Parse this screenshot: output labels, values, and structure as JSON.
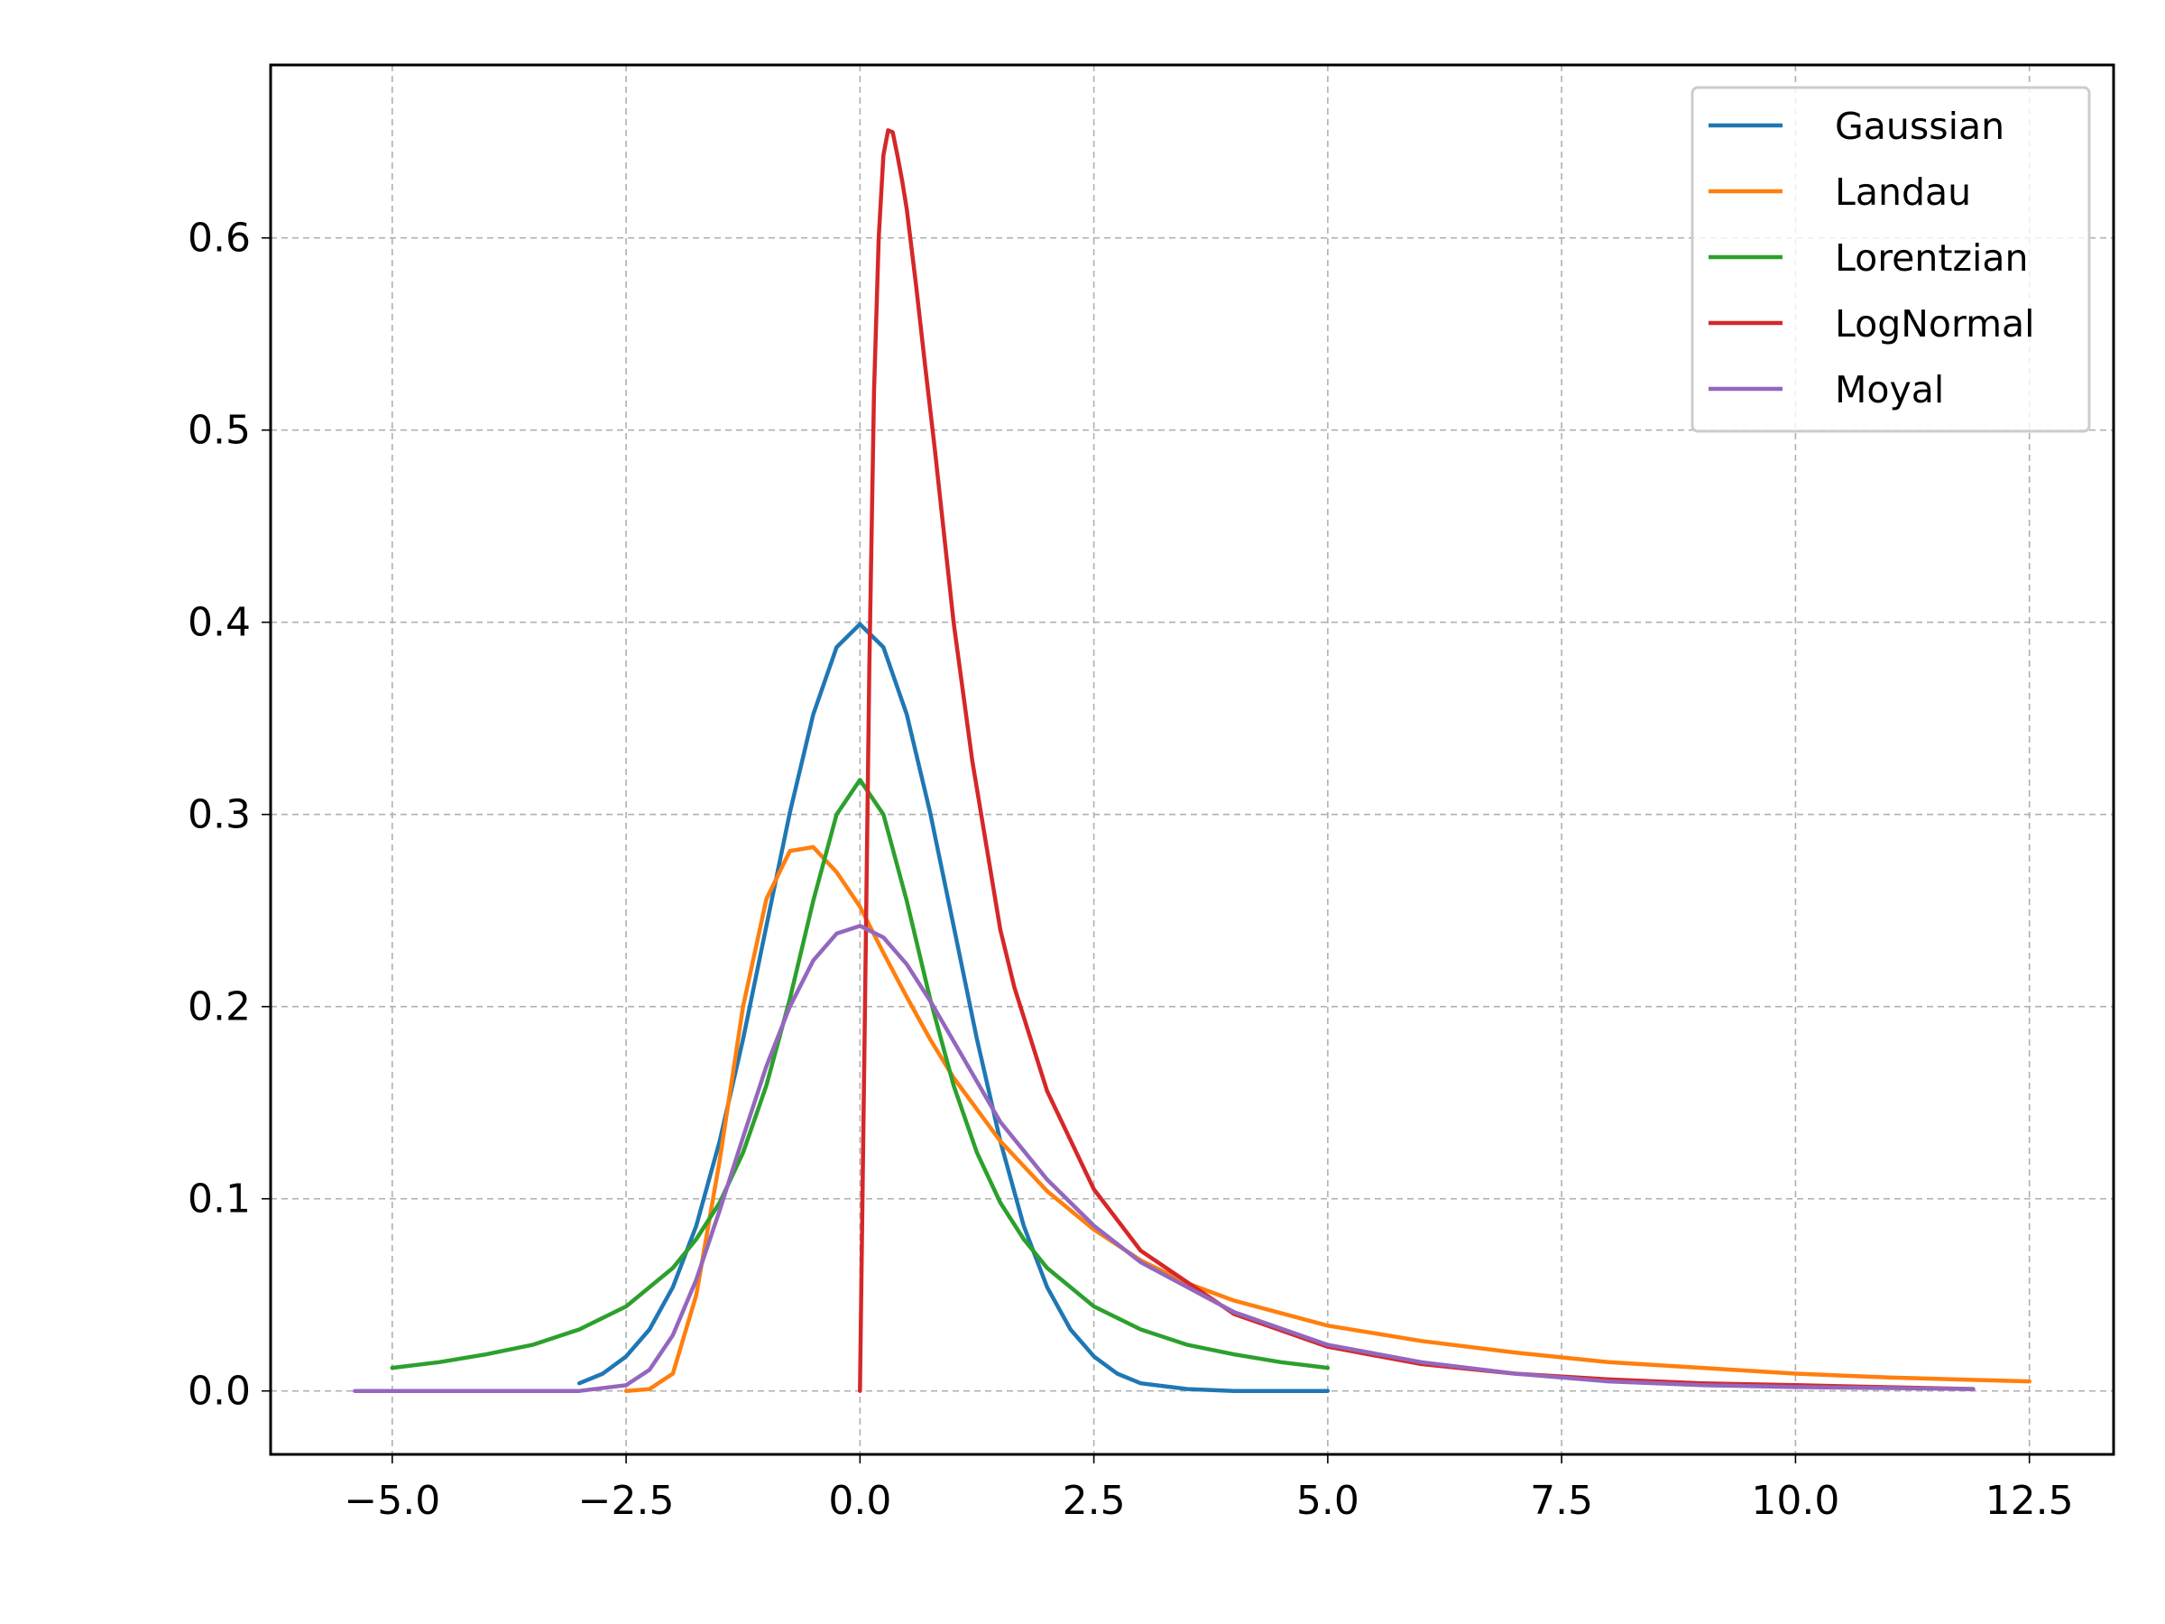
{
  "chart_data": {
    "type": "line",
    "title": "",
    "xlabel": "",
    "ylabel": "",
    "xlim": [
      -6.3,
      13.4
    ],
    "ylim": [
      -0.033,
      0.69
    ],
    "xticks": [
      -5.0,
      -2.5,
      0.0,
      2.5,
      5.0,
      7.5,
      10.0,
      12.5
    ],
    "xtick_labels": [
      "−5.0",
      "−2.5",
      "0.0",
      "2.5",
      "5.0",
      "7.5",
      "10.0",
      "12.5"
    ],
    "yticks": [
      0.0,
      0.1,
      0.2,
      0.3,
      0.4,
      0.5,
      0.6
    ],
    "ytick_labels": [
      "0.0",
      "0.1",
      "0.2",
      "0.3",
      "0.4",
      "0.5",
      "0.6"
    ],
    "grid": true,
    "legend_position": "top-right",
    "series": [
      {
        "name": "Gaussian",
        "color": "#1f77b4",
        "x": [
          -3.0,
          -2.75,
          -2.5,
          -2.25,
          -2.0,
          -1.75,
          -1.5,
          -1.25,
          -1.0,
          -0.75,
          -0.5,
          -0.25,
          0.0,
          0.25,
          0.5,
          0.75,
          1.0,
          1.25,
          1.5,
          1.75,
          2.0,
          2.25,
          2.5,
          2.75,
          3.0,
          3.5,
          4.0,
          4.5,
          5.0
        ],
        "y": [
          0.004,
          0.009,
          0.018,
          0.032,
          0.054,
          0.086,
          0.13,
          0.183,
          0.242,
          0.301,
          0.352,
          0.387,
          0.399,
          0.387,
          0.352,
          0.301,
          0.242,
          0.183,
          0.13,
          0.086,
          0.054,
          0.032,
          0.018,
          0.009,
          0.004,
          0.001,
          0.0,
          0.0,
          0.0
        ]
      },
      {
        "name": "Landau",
        "color": "#ff7f0e",
        "x": [
          -2.5,
          -2.25,
          -2.0,
          -1.75,
          -1.5,
          -1.25,
          -1.0,
          -0.75,
          -0.5,
          -0.25,
          0.0,
          0.25,
          0.5,
          0.75,
          1.0,
          1.5,
          2.0,
          2.5,
          3.0,
          3.5,
          4.0,
          5.0,
          6.0,
          7.0,
          8.0,
          9.0,
          10.0,
          11.0,
          12.5
        ],
        "y": [
          0.0,
          0.001,
          0.009,
          0.05,
          0.12,
          0.2,
          0.256,
          0.281,
          0.283,
          0.27,
          0.252,
          0.228,
          0.205,
          0.183,
          0.163,
          0.13,
          0.104,
          0.084,
          0.068,
          0.056,
          0.047,
          0.034,
          0.026,
          0.02,
          0.015,
          0.012,
          0.009,
          0.007,
          0.005
        ]
      },
      {
        "name": "Lorentzian",
        "color": "#2ca02c",
        "x": [
          -5.0,
          -4.5,
          -4.0,
          -3.5,
          -3.0,
          -2.5,
          -2.0,
          -1.75,
          -1.5,
          -1.25,
          -1.0,
          -0.75,
          -0.5,
          -0.25,
          0.0,
          0.25,
          0.5,
          0.75,
          1.0,
          1.25,
          1.5,
          1.75,
          2.0,
          2.5,
          3.0,
          3.5,
          4.0,
          4.5,
          5.0
        ],
        "y": [
          0.012,
          0.015,
          0.019,
          0.024,
          0.032,
          0.044,
          0.064,
          0.079,
          0.098,
          0.124,
          0.159,
          0.204,
          0.255,
          0.3,
          0.318,
          0.3,
          0.255,
          0.204,
          0.159,
          0.124,
          0.098,
          0.079,
          0.064,
          0.044,
          0.032,
          0.024,
          0.019,
          0.015,
          0.012
        ]
      },
      {
        "name": "LogNormal",
        "color": "#d62728",
        "x": [
          0.0,
          0.05,
          0.1,
          0.15,
          0.2,
          0.25,
          0.3,
          0.35,
          0.4,
          0.45,
          0.5,
          0.6,
          0.7,
          0.8,
          1.0,
          1.2,
          1.5,
          1.65,
          2.0,
          2.5,
          3.0,
          4.0,
          5.0,
          6.0,
          7.0,
          8.0,
          9.0,
          10.0,
          11.9
        ],
        "y": [
          0.0,
          0.186,
          0.377,
          0.52,
          0.6,
          0.643,
          0.656,
          0.655,
          0.643,
          0.63,
          0.615,
          0.575,
          0.532,
          0.49,
          0.4,
          0.328,
          0.24,
          0.21,
          0.156,
          0.105,
          0.073,
          0.04,
          0.023,
          0.014,
          0.009,
          0.006,
          0.004,
          0.003,
          0.001
        ]
      },
      {
        "name": "Moyal",
        "color": "#9467bd",
        "x": [
          -5.4,
          -4.0,
          -3.5,
          -3.0,
          -2.5,
          -2.25,
          -2.0,
          -1.75,
          -1.5,
          -1.25,
          -1.0,
          -0.75,
          -0.5,
          -0.25,
          0.0,
          0.25,
          0.5,
          0.75,
          1.0,
          1.25,
          1.5,
          2.0,
          2.5,
          3.0,
          4.0,
          5.0,
          6.0,
          7.0,
          8.0,
          9.0,
          10.0,
          11.9
        ],
        "y": [
          0.0,
          0.0,
          0.0,
          0.0,
          0.003,
          0.011,
          0.029,
          0.058,
          0.094,
          0.132,
          0.169,
          0.2,
          0.224,
          0.238,
          0.242,
          0.236,
          0.222,
          0.203,
          0.182,
          0.161,
          0.14,
          0.11,
          0.086,
          0.067,
          0.041,
          0.024,
          0.015,
          0.009,
          0.005,
          0.003,
          0.002,
          0.001
        ]
      }
    ]
  }
}
